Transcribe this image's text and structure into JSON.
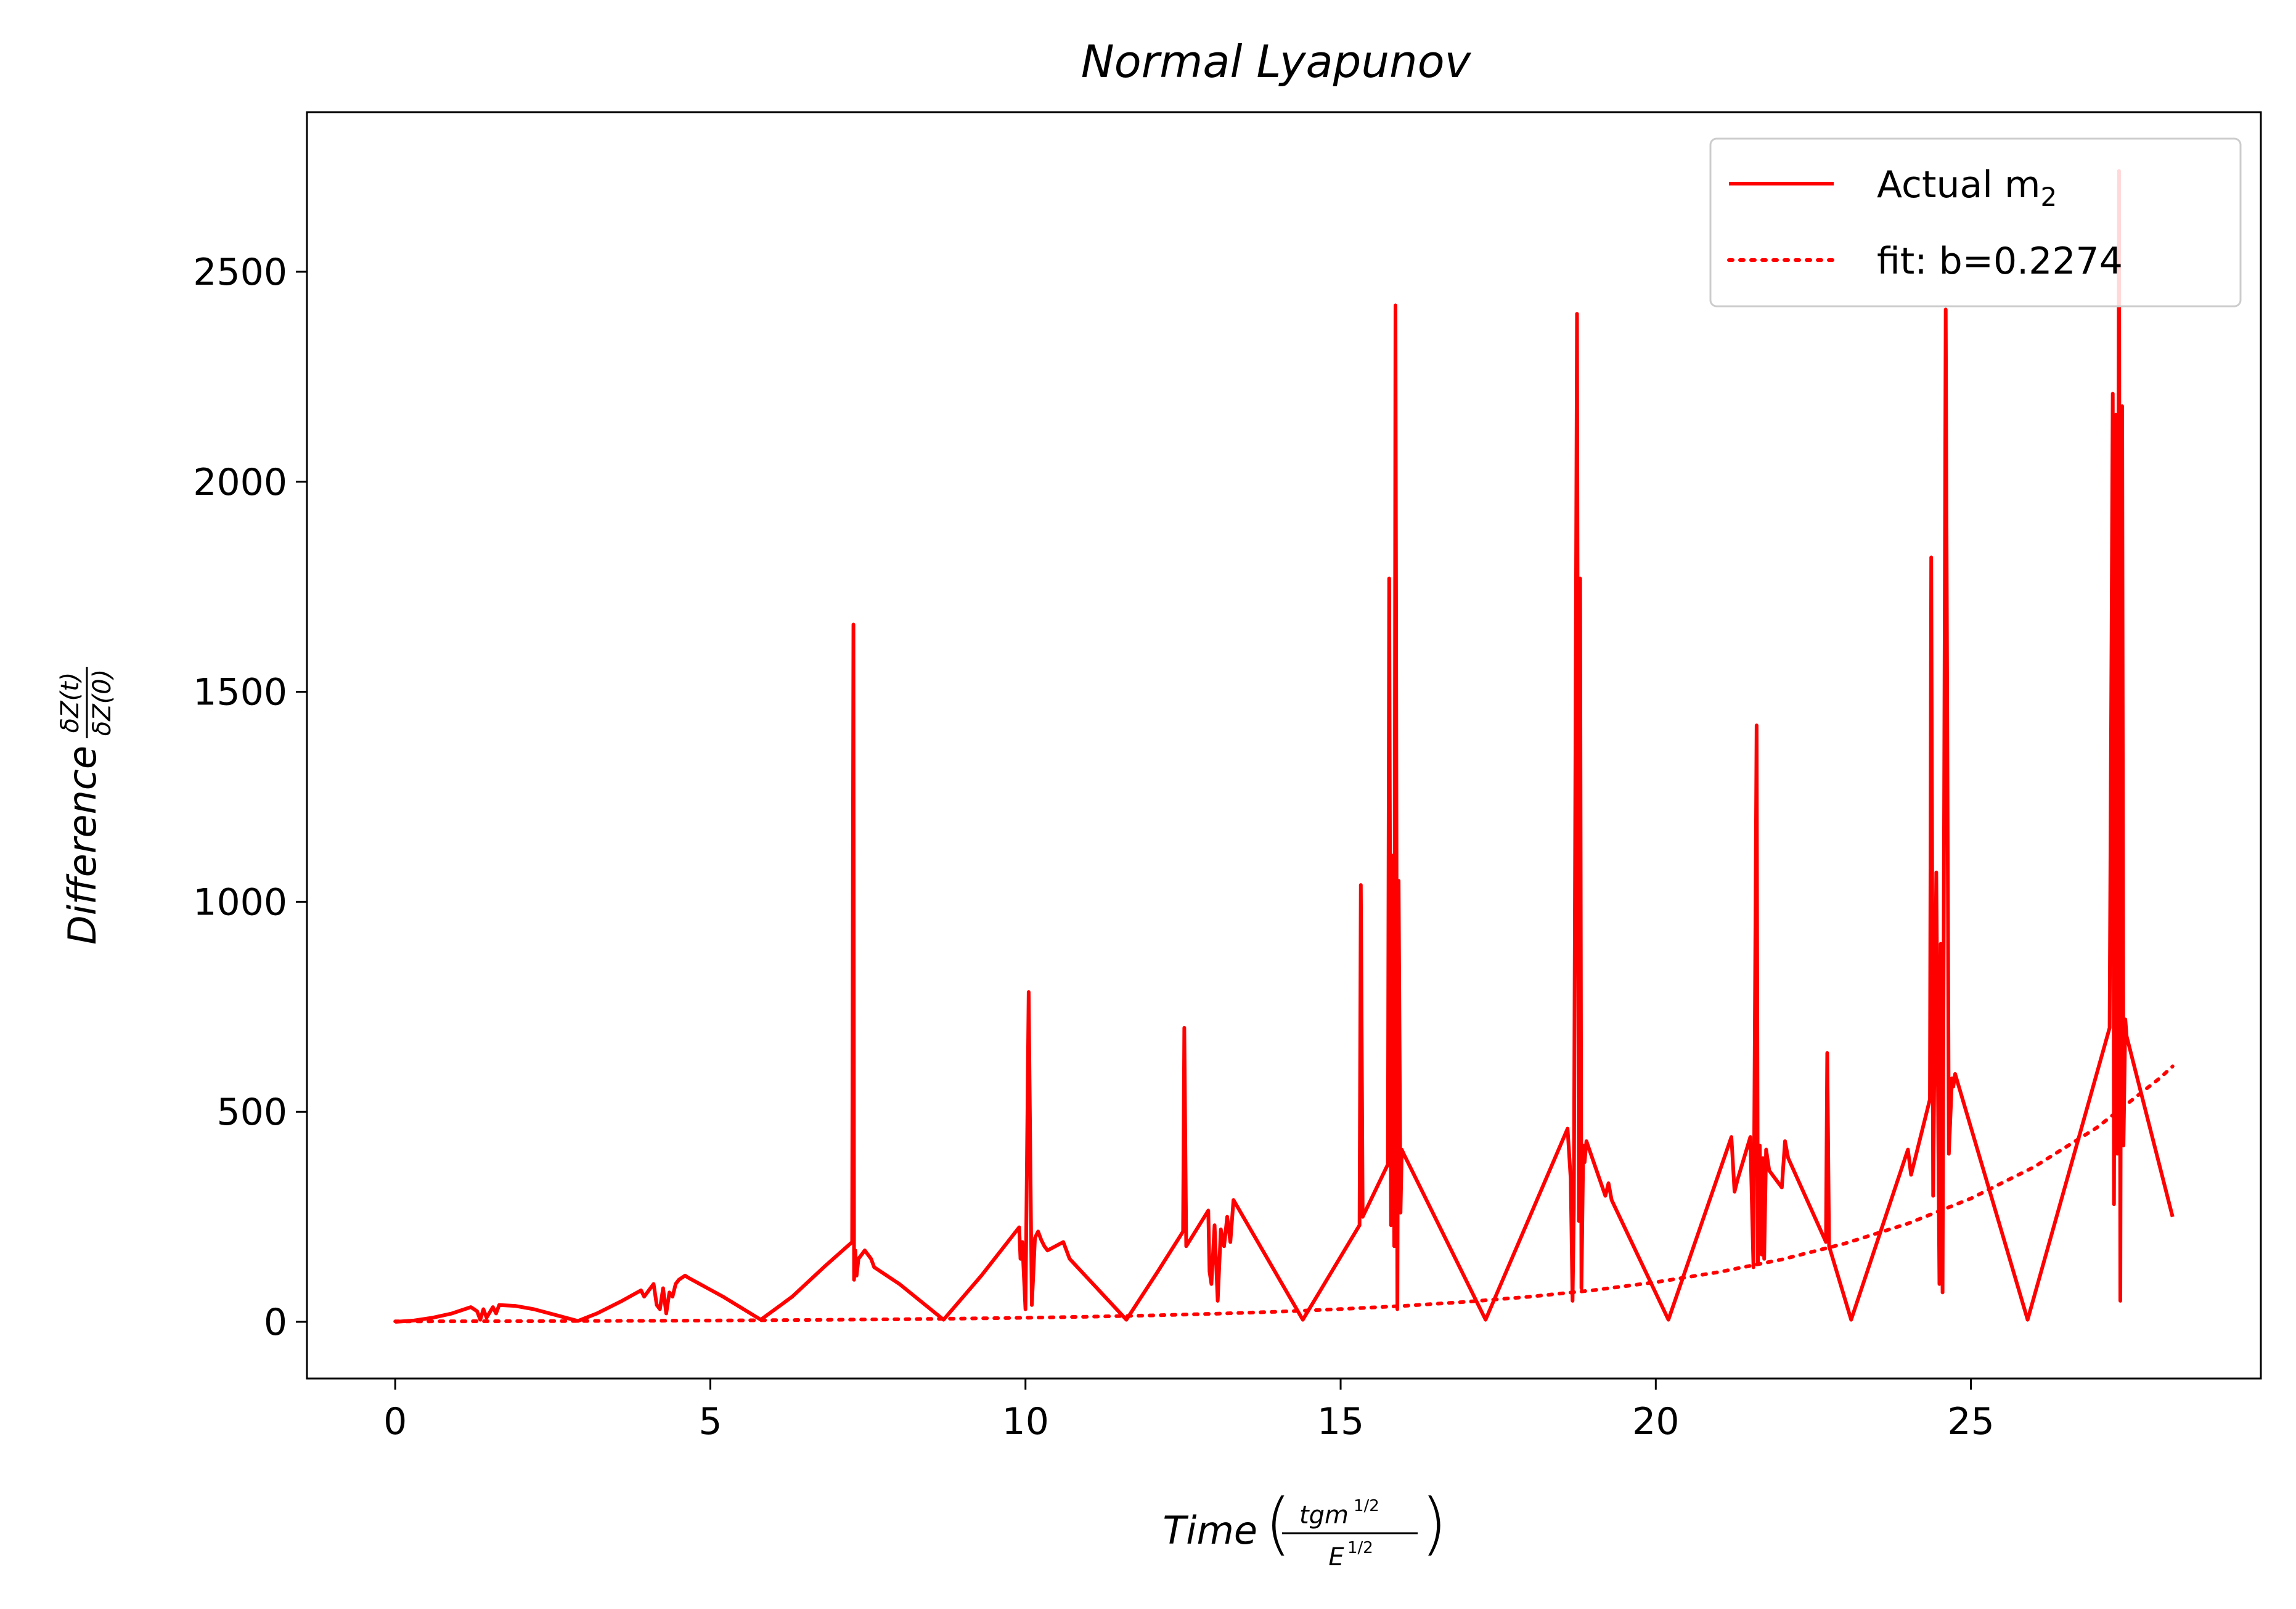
{
  "chart_data": {
    "type": "line",
    "title": "Normal Lyapunov",
    "xlabel": "Time",
    "xlabel_fraction": {
      "numerator": "tgm",
      "numerator_exponent": "1/2",
      "denominator": "E",
      "denominator_exponent": "1/2"
    },
    "ylabel": "Difference",
    "ylabel_fraction": {
      "numerator": "δZ(t)",
      "denominator": "δZ(0)"
    },
    "xlim": [
      -1.4,
      29.6
    ],
    "ylim": [
      -135,
      2880
    ],
    "xticks": [
      0,
      5,
      10,
      15,
      20,
      25
    ],
    "yticks": [
      0,
      500,
      1000,
      1500,
      2000,
      2500
    ],
    "grid": false,
    "legend_position": "upper right",
    "colors": {
      "series": "#ff0000",
      "axes": "#000000",
      "background": "#ffffff"
    },
    "series": [
      {
        "name": "Actual m",
        "name_subscript": "2",
        "style": "solid",
        "color": "#ff0000",
        "x": [
          0,
          0.3,
          0.6,
          0.9,
          1.2,
          1.3,
          1.35,
          1.4,
          1.45,
          1.55,
          1.6,
          1.65,
          1.9,
          2.2,
          2.5,
          2.9,
          3.2,
          3.6,
          3.9,
          3.95,
          4.1,
          4.15,
          4.2,
          4.25,
          4.3,
          4.35,
          4.4,
          4.45,
          4.5,
          4.6,
          4.65,
          5.2,
          5.8,
          6.3,
          6.8,
          7.25,
          7.27,
          7.28,
          7.3,
          7.32,
          7.35,
          7.45,
          7.55,
          7.6,
          8.0,
          8.7,
          9.3,
          9.9,
          9.92,
          9.95,
          10.0,
          10.05,
          10.1,
          10.12,
          10.15,
          10.2,
          10.25,
          10.3,
          10.35,
          10.6,
          10.65,
          10.7,
          11.6,
          12.1,
          12.5,
          12.52,
          12.55,
          12.9,
          12.92,
          12.95,
          13.0,
          13.05,
          13.1,
          13.15,
          13.2,
          13.25,
          13.3,
          14.4,
          15.3,
          15.32,
          15.35,
          15.75,
          15.77,
          15.8,
          15.82,
          15.85,
          15.87,
          15.9,
          15.92,
          15.95,
          15.97,
          16.0,
          17.3,
          18.6,
          18.65,
          18.68,
          18.7,
          18.75,
          18.78,
          18.8,
          18.82,
          18.85,
          18.87,
          18.9,
          19.2,
          19.25,
          19.3,
          20.2,
          21.2,
          21.25,
          21.3,
          21.5,
          21.55,
          21.6,
          21.62,
          21.65,
          21.68,
          21.7,
          21.72,
          21.75,
          21.8,
          22.0,
          22.05,
          22.1,
          22.7,
          22.72,
          22.75,
          23.1,
          24.0,
          24.05,
          24.1,
          24.35,
          24.37,
          24.4,
          24.45,
          24.5,
          24.52,
          24.55,
          24.6,
          24.65,
          24.7,
          24.72,
          24.75,
          25.9,
          27.2,
          27.25,
          27.27,
          27.3,
          27.32,
          27.35,
          27.37,
          27.4,
          27.42,
          27.45,
          27.47,
          28.2
        ],
        "y": [
          0,
          3,
          10,
          20,
          35,
          25,
          5,
          30,
          10,
          35,
          20,
          40,
          38,
          30,
          18,
          2,
          20,
          50,
          75,
          60,
          90,
          40,
          30,
          80,
          20,
          70,
          60,
          90,
          100,
          110,
          105,
          60,
          5,
          60,
          130,
          190,
          1660,
          100,
          170,
          110,
          150,
          170,
          150,
          130,
          90,
          5,
          110,
          225,
          150,
          190,
          30,
          785,
          40,
          100,
          200,
          215,
          195,
          180,
          170,
          190,
          170,
          150,
          5,
          120,
          215,
          700,
          180,
          265,
          120,
          90,
          230,
          50,
          220,
          180,
          250,
          190,
          290,
          5,
          230,
          1040,
          250,
          375,
          1770,
          230,
          1110,
          180,
          2420,
          30,
          1050,
          260,
          410,
          400,
          5,
          460,
          340,
          50,
          270,
          2400,
          240,
          1770,
          80,
          420,
          380,
          430,
          300,
          330,
          290,
          5,
          440,
          310,
          340,
          440,
          130,
          1420,
          140,
          420,
          160,
          390,
          150,
          410,
          360,
          320,
          430,
          390,
          190,
          640,
          180,
          5,
          410,
          350,
          380,
          530,
          1820,
          300,
          1070,
          90,
          900,
          70,
          2410,
          400,
          580,
          560,
          590,
          5,
          700,
          2210,
          280,
          2160,
          400,
          2740,
          50,
          2180,
          420,
          720,
          680,
          250
        ]
      },
      {
        "name": "fit: b=0.2274",
        "style": "dotted",
        "color": "#ff0000",
        "b": 0.2274,
        "x": [
          0,
          1,
          2,
          3,
          4,
          5,
          6,
          7,
          8,
          9,
          10,
          11,
          12,
          13,
          14,
          15,
          16,
          17,
          18,
          19,
          20,
          21,
          22,
          23,
          24,
          25,
          26,
          27,
          28,
          28.2
        ],
        "y": [
          1,
          1.26,
          1.58,
          1.98,
          2.48,
          3.12,
          3.91,
          4.91,
          6.16,
          7.74,
          9.71,
          12.2,
          15.3,
          19.2,
          24.1,
          30.3,
          38.0,
          47.7,
          59.9,
          75.1,
          94.3,
          118.4,
          148.5,
          186.4,
          234.0,
          293.7,
          368.6,
          462.6,
          580.6,
          608.2
        ]
      }
    ]
  }
}
